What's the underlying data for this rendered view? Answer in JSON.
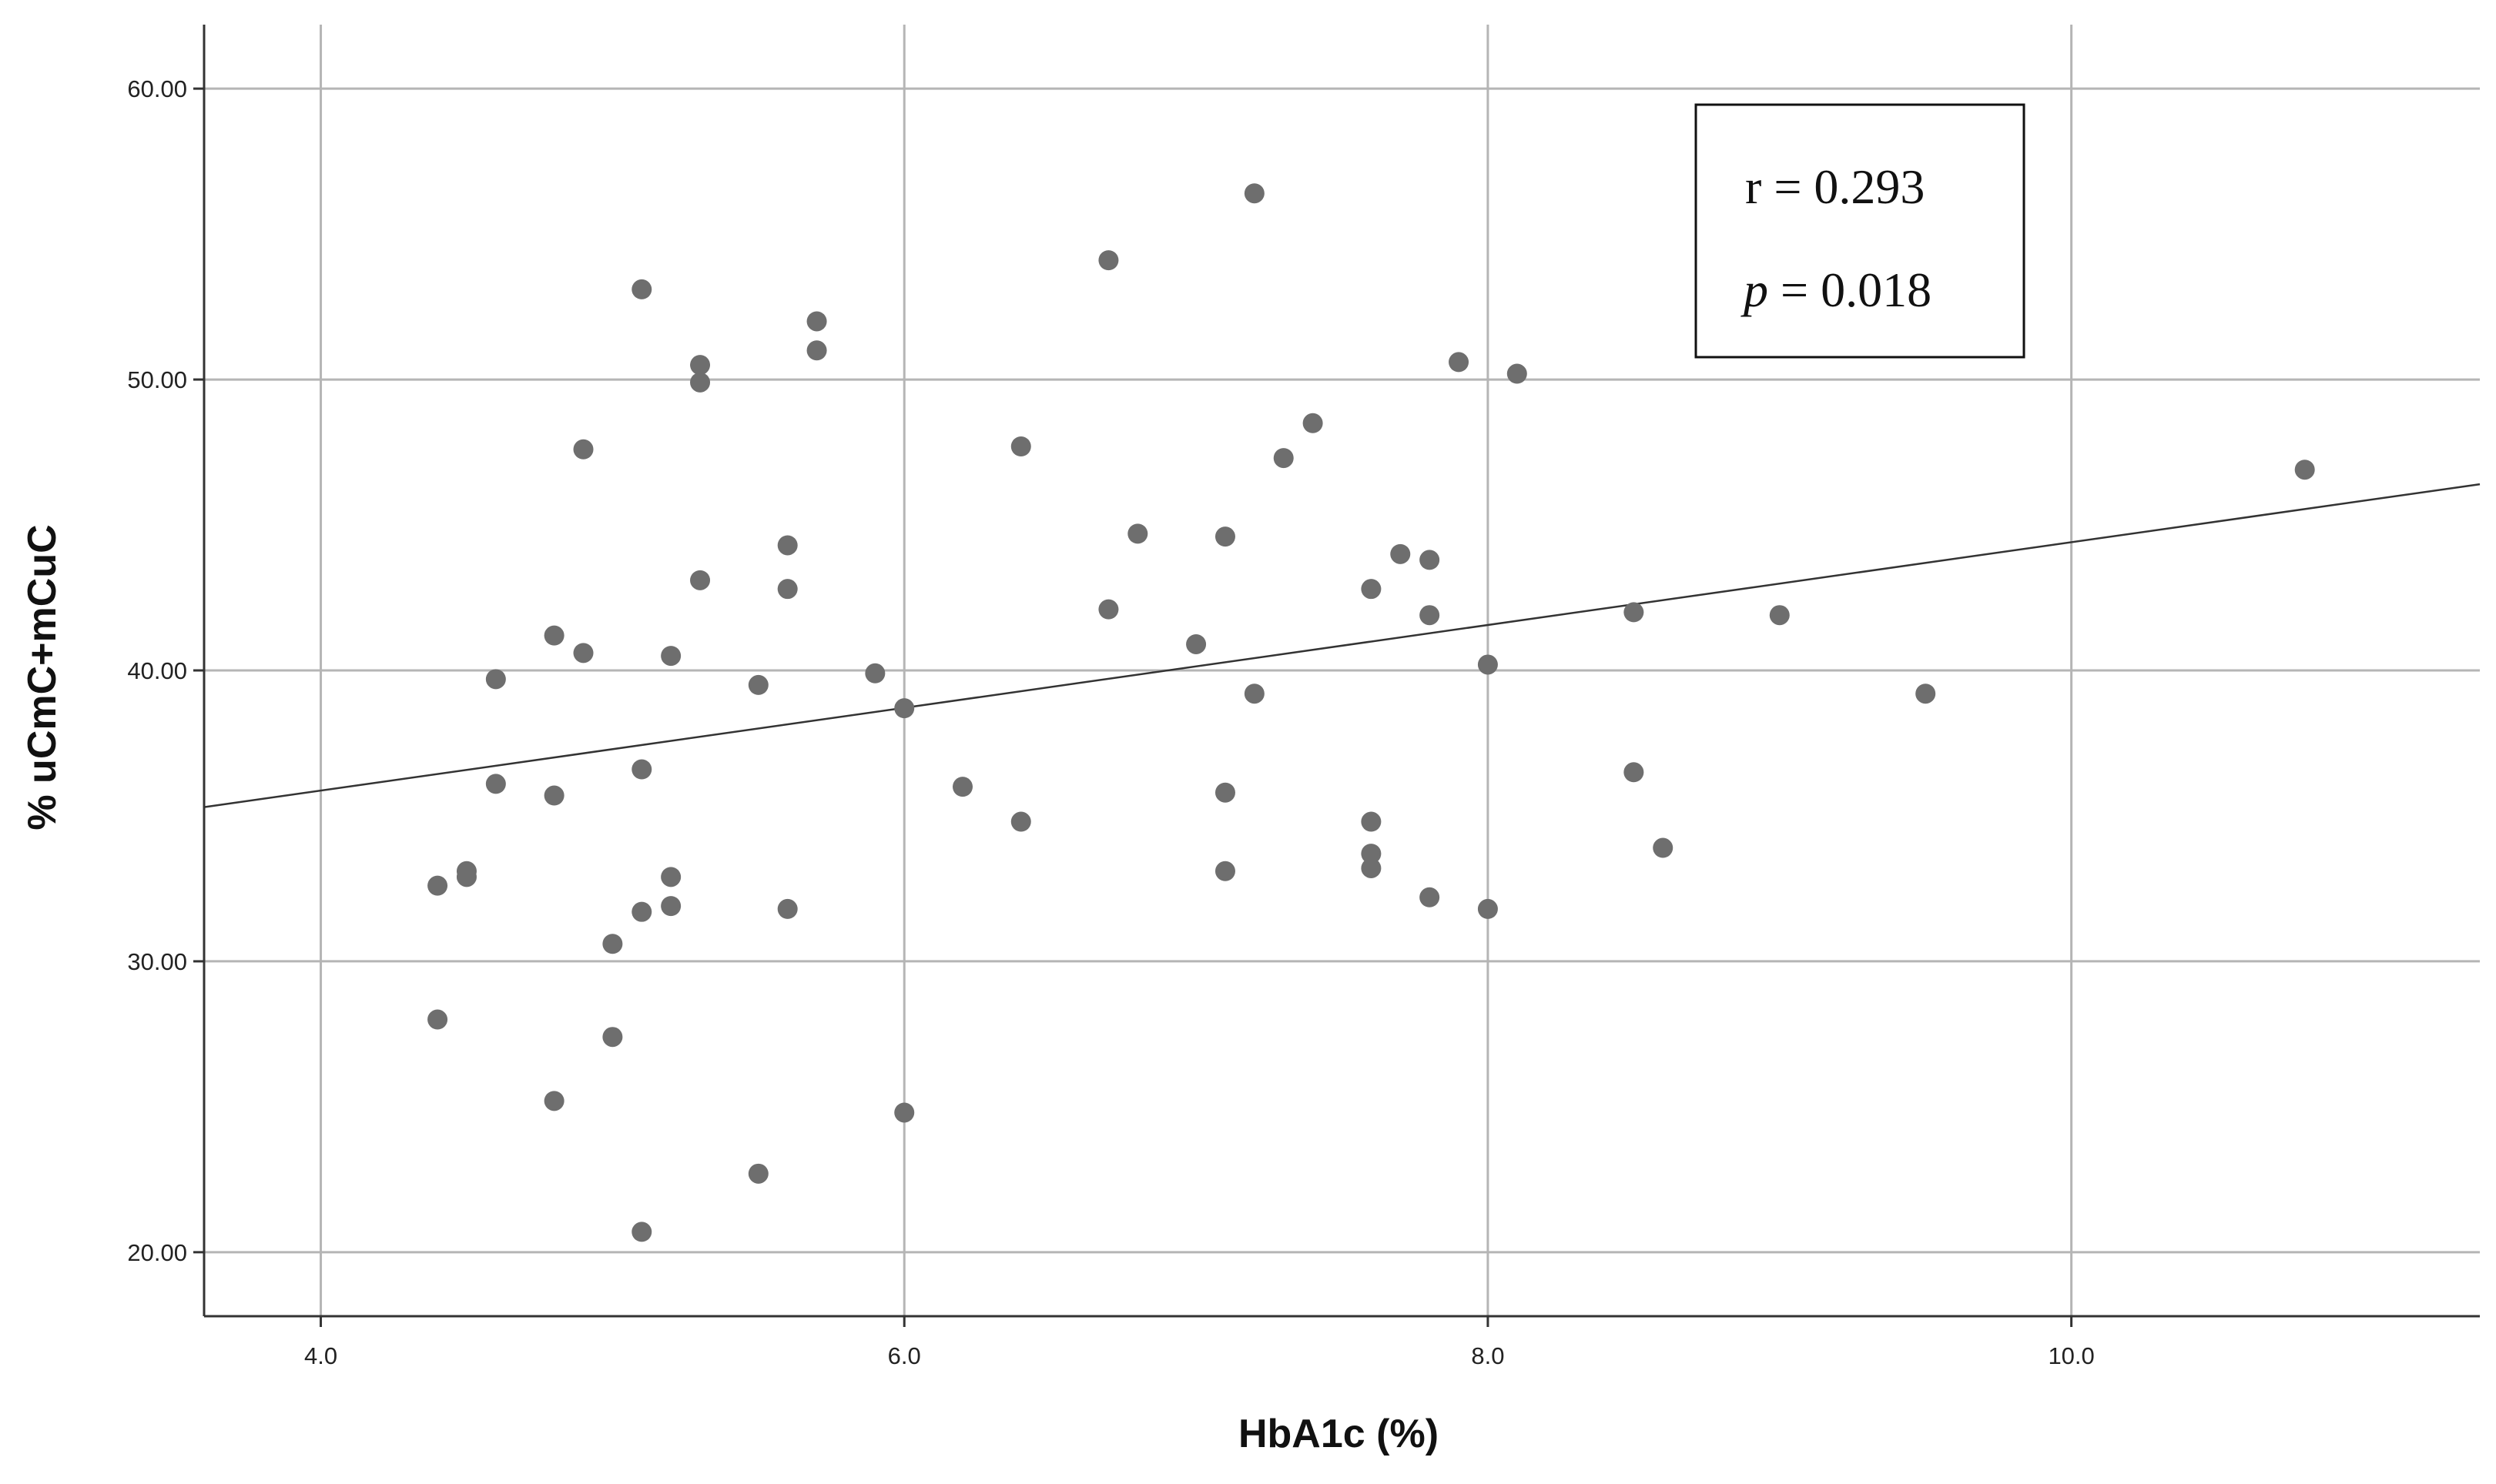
{
  "chart_data": {
    "type": "scatter",
    "xlabel": "HbA1c (%)",
    "ylabel": "% uCmC+mCuC",
    "xlim": [
      3.6,
      11.4
    ],
    "ylim": [
      17.8,
      62.2
    ],
    "grid": true,
    "x_ticks": [
      {
        "value": 4.0,
        "label": "4.0"
      },
      {
        "value": 6.0,
        "label": "6.0"
      },
      {
        "value": 8.0,
        "label": "8.0"
      },
      {
        "value": 10.0,
        "label": "10.0"
      }
    ],
    "y_ticks": [
      {
        "value": 20,
        "label": "20.00"
      },
      {
        "value": 30,
        "label": "30.00"
      },
      {
        "value": 40,
        "label": "40.00"
      },
      {
        "value": 50,
        "label": "50.00"
      },
      {
        "value": 60,
        "label": "60.00"
      }
    ],
    "point_color": "#6e6e6e",
    "line_color": "#333333",
    "grid_color": "#b5b5b5",
    "fit_line": {
      "x": [
        3.6,
        11.4
      ],
      "y": [
        35.3,
        46.4
      ]
    },
    "annotation": {
      "r_label": "r = 0.293",
      "p_symbol": "p",
      "p_value": " = 0.018"
    },
    "points": [
      {
        "x": 4.4,
        "y": 32.6
      },
      {
        "x": 4.4,
        "y": 28.0
      },
      {
        "x": 4.5,
        "y": 33.1
      },
      {
        "x": 4.5,
        "y": 32.9
      },
      {
        "x": 4.6,
        "y": 39.7
      },
      {
        "x": 4.6,
        "y": 36.1
      },
      {
        "x": 4.8,
        "y": 41.2
      },
      {
        "x": 4.8,
        "y": 35.7
      },
      {
        "x": 4.8,
        "y": 25.2
      },
      {
        "x": 4.9,
        "y": 47.6
      },
      {
        "x": 4.9,
        "y": 40.6
      },
      {
        "x": 5.0,
        "y": 30.6
      },
      {
        "x": 5.0,
        "y": 27.4
      },
      {
        "x": 5.1,
        "y": 53.1
      },
      {
        "x": 5.1,
        "y": 36.6
      },
      {
        "x": 5.1,
        "y": 31.7
      },
      {
        "x": 5.1,
        "y": 20.7
      },
      {
        "x": 5.2,
        "y": 40.5
      },
      {
        "x": 5.2,
        "y": 32.9
      },
      {
        "x": 5.2,
        "y": 31.9
      },
      {
        "x": 5.3,
        "y": 50.5
      },
      {
        "x": 5.3,
        "y": 49.9
      },
      {
        "x": 5.3,
        "y": 43.1
      },
      {
        "x": 5.5,
        "y": 39.5
      },
      {
        "x": 5.5,
        "y": 22.7
      },
      {
        "x": 5.6,
        "y": 44.3
      },
      {
        "x": 5.6,
        "y": 42.8
      },
      {
        "x": 5.6,
        "y": 31.8
      },
      {
        "x": 5.7,
        "y": 52.0
      },
      {
        "x": 5.7,
        "y": 51.0
      },
      {
        "x": 5.9,
        "y": 39.9
      },
      {
        "x": 6.0,
        "y": 38.7
      },
      {
        "x": 6.0,
        "y": 24.8
      },
      {
        "x": 6.2,
        "y": 36.0
      },
      {
        "x": 6.4,
        "y": 47.7
      },
      {
        "x": 6.4,
        "y": 34.8
      },
      {
        "x": 6.7,
        "y": 54.1
      },
      {
        "x": 6.7,
        "y": 42.1
      },
      {
        "x": 6.8,
        "y": 44.7
      },
      {
        "x": 7.0,
        "y": 40.9
      },
      {
        "x": 7.1,
        "y": 44.6
      },
      {
        "x": 7.1,
        "y": 35.8
      },
      {
        "x": 7.1,
        "y": 33.1
      },
      {
        "x": 7.2,
        "y": 56.4
      },
      {
        "x": 7.2,
        "y": 39.2
      },
      {
        "x": 7.3,
        "y": 47.3
      },
      {
        "x": 7.4,
        "y": 48.5
      },
      {
        "x": 7.6,
        "y": 42.8
      },
      {
        "x": 7.6,
        "y": 34.8
      },
      {
        "x": 7.6,
        "y": 33.7
      },
      {
        "x": 7.6,
        "y": 33.2
      },
      {
        "x": 7.7,
        "y": 44.0
      },
      {
        "x": 7.8,
        "y": 43.8
      },
      {
        "x": 7.8,
        "y": 41.9
      },
      {
        "x": 7.8,
        "y": 32.2
      },
      {
        "x": 7.9,
        "y": 50.6
      },
      {
        "x": 8.0,
        "y": 40.2
      },
      {
        "x": 8.0,
        "y": 31.8
      },
      {
        "x": 8.1,
        "y": 50.2
      },
      {
        "x": 8.5,
        "y": 42.0
      },
      {
        "x": 8.5,
        "y": 36.5
      },
      {
        "x": 8.6,
        "y": 33.9
      },
      {
        "x": 9.0,
        "y": 41.9
      },
      {
        "x": 9.5,
        "y": 39.2
      },
      {
        "x": 10.8,
        "y": 46.9
      }
    ]
  }
}
